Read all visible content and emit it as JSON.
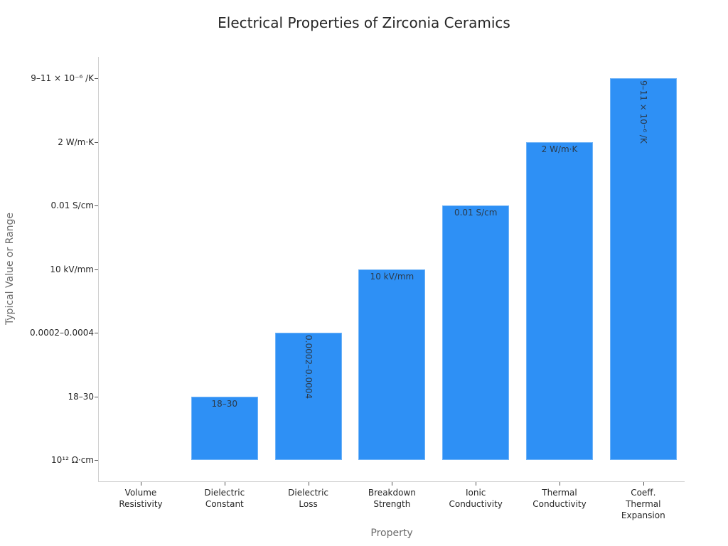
{
  "chart_data": {
    "type": "bar",
    "title": "Electrical Properties of Zirconia Ceramics",
    "xlabel": "Property",
    "ylabel": "Typical Value or Range",
    "categories": [
      "Volume\nResistivity",
      "Dielectric\nConstant",
      "Dielectric\nLoss",
      "Breakdown\nStrength",
      "Ionic\nConductivity",
      "Thermal\nConductivity",
      "Coeff.\nThermal\nExpansion"
    ],
    "y_axis_type": "categorical",
    "y_tick_labels": [
      "10¹² Ω·cm",
      "18–30",
      "0.0002–0.0004",
      "10 kV/mm",
      "0.01 S/cm",
      "2 W/m·K",
      "9–11 × 10⁻⁶ /K"
    ],
    "values": [
      0,
      1,
      2,
      3,
      4,
      5,
      6
    ],
    "value_labels": [
      "",
      "18–30",
      "0.0002–0.0004",
      "10 kV/mm",
      "0.01 S/cm",
      "2 W/m·K",
      "9–11 × 10⁻⁶ /K"
    ],
    "label_orientation": [
      "none",
      "horizontal",
      "vertical",
      "horizontal",
      "horizontal",
      "horizontal",
      "vertical"
    ],
    "ylim": [
      -0.33,
      6.33
    ],
    "grid": false,
    "legend": null,
    "colors": {
      "bar": "#2E90F5",
      "axis": "#D0D0D0",
      "text": "#262626",
      "axis_title": "#6B6B6B"
    }
  }
}
